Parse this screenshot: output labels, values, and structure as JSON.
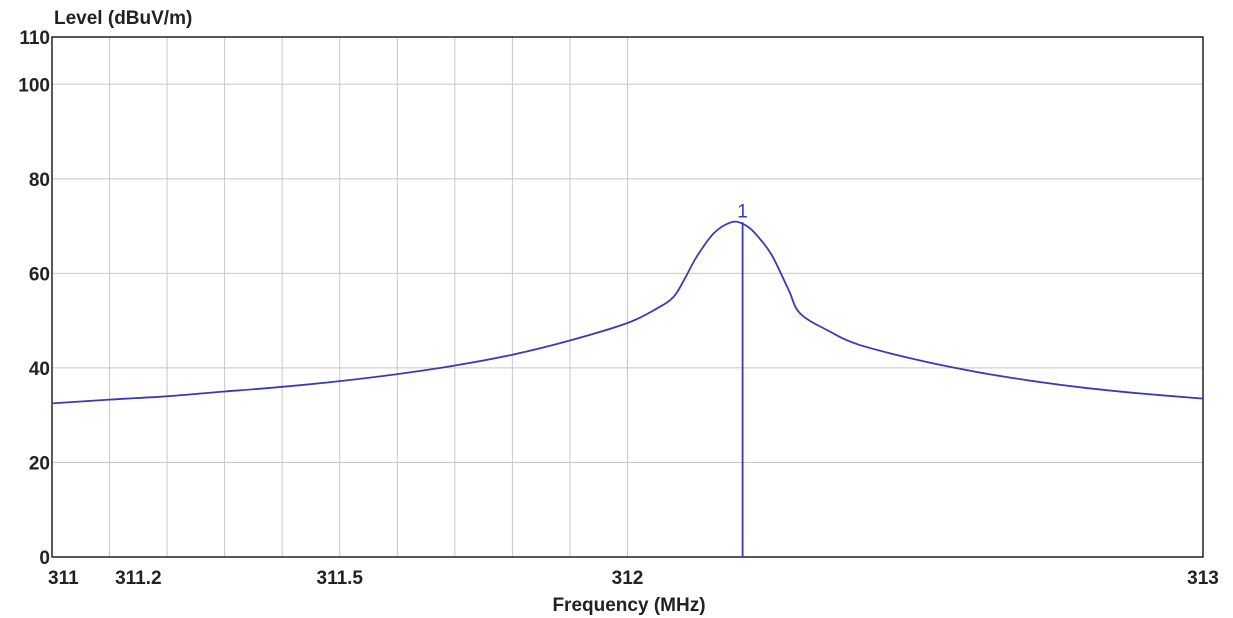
{
  "chart_data": {
    "type": "line",
    "ylabel": "Level (dBuV/m)",
    "xlabel": "Frequency (MHz)",
    "xlim": [
      311,
      313
    ],
    "ylim": [
      0,
      110
    ],
    "x_ticks": [
      {
        "value": 311,
        "label": "311"
      },
      {
        "value": 311.15,
        "label": "311.2"
      },
      {
        "value": 311.5,
        "label": "311.5"
      },
      {
        "value": 312,
        "label": "312"
      },
      {
        "value": 313,
        "label": "313"
      }
    ],
    "x_gridlines": [
      311,
      311.1,
      311.2,
      311.3,
      311.4,
      311.5,
      311.6,
      311.7,
      311.8,
      311.9,
      312,
      313
    ],
    "y_ticks": [
      0,
      20,
      40,
      60,
      80,
      100,
      110
    ],
    "grid": true,
    "colors": {
      "trace": "#3a3ab8",
      "grid": "#c8c8c8",
      "frame": "#000000",
      "marker_label": "#3a3acc"
    },
    "series": [
      {
        "x": [
          311.0,
          311.1,
          311.2,
          311.3,
          311.4,
          311.5,
          311.6,
          311.7,
          311.8,
          311.9,
          312.0,
          312.05,
          312.08,
          312.1,
          312.12,
          312.15,
          312.18,
          312.2,
          312.22,
          312.25,
          312.28,
          312.3,
          312.35,
          312.4,
          312.5,
          312.6,
          312.7,
          312.8,
          312.9,
          313.0
        ],
        "y": [
          32.5,
          33.3,
          34.0,
          35.0,
          36.0,
          37.2,
          38.7,
          40.5,
          42.8,
          45.8,
          49.5,
          52.5,
          55.0,
          59.0,
          63.5,
          68.5,
          70.8,
          70.5,
          68.7,
          64.0,
          56.5,
          51.5,
          47.8,
          45.0,
          41.8,
          39.3,
          37.3,
          35.7,
          34.5,
          33.5
        ]
      }
    ],
    "markers": [
      {
        "label": "1",
        "x": 312.2,
        "y": 70.8
      }
    ]
  }
}
